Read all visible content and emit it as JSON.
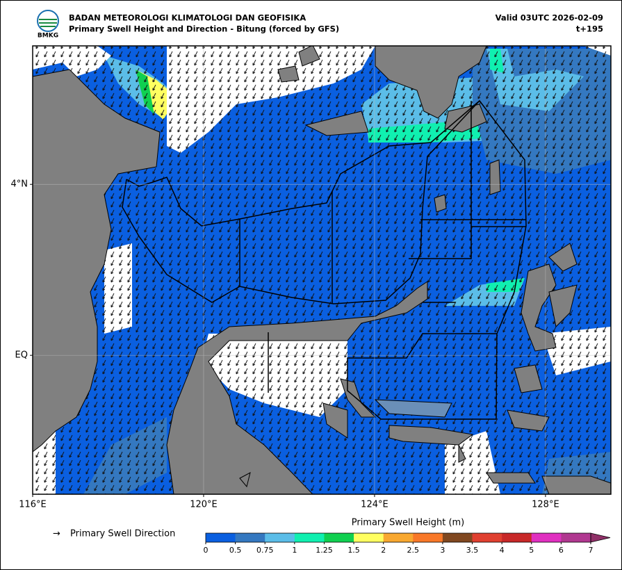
{
  "header": {
    "agency": "BADAN METEOROLOGI KLIMATOLOGI DAN GEOFISIKA",
    "subtitle": "Primary Swell Height and Direction - Bitung (forced by GFS)",
    "valid": "Valid 03UTC 2026-02-09",
    "lead": "t+195",
    "logo": "BMKG"
  },
  "map": {
    "xlim": [
      116,
      129.53
    ],
    "ylim": [
      -3.25,
      7.24
    ],
    "xticks": [
      {
        "value": 116,
        "label": "116°E"
      },
      {
        "value": 120,
        "label": "120°E"
      },
      {
        "value": 124,
        "label": "124°E"
      },
      {
        "value": 128,
        "label": "128°E"
      }
    ],
    "yticks": [
      {
        "value": 4,
        "label": "4°N"
      },
      {
        "value": 0,
        "label": "EQ"
      }
    ],
    "grid": true
  },
  "legend": {
    "direction_symbol": "→",
    "direction_label": "Primary Swell Direction",
    "colorbar": {
      "title": "Primary Swell Height (m)",
      "bounds": [
        0,
        0.5,
        0.75,
        1,
        1.25,
        1.5,
        2,
        2.5,
        3,
        3.5,
        4,
        5,
        6,
        7
      ],
      "colors": [
        "#0a5fe0",
        "#3478c0",
        "#5bbde8",
        "#10f0b0",
        "#10d050",
        "#ffff60",
        "#f8a830",
        "#f87828",
        "#804820",
        "#e04030",
        "#c82828",
        "#e030c0",
        "#b03890"
      ],
      "extend_color": "#903068"
    }
  }
}
